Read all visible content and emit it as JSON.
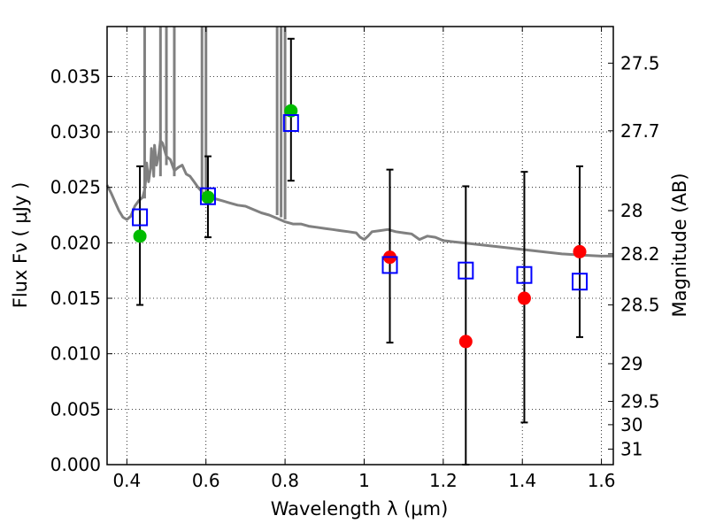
{
  "chart_data": {
    "type": "scatter",
    "title": "",
    "xlabel": "Wavelength  λ (μm)",
    "ylabel": "Flux  Fν  ( μJy )",
    "ylabel_right": "Magnitude (AB)",
    "xlim": [
      0.35,
      1.63
    ],
    "ylim": [
      0.0,
      0.0395
    ],
    "grid": true,
    "x_ticks": [
      0.4,
      0.6,
      0.8,
      1.0,
      1.2,
      1.4,
      1.6
    ],
    "x_tick_labels": [
      "0.4",
      "0.6",
      "0.8",
      "1",
      "1.2",
      "1.4",
      "1.6"
    ],
    "y_ticks": [
      0.0,
      0.005,
      0.01,
      0.015,
      0.02,
      0.025,
      0.03,
      0.035
    ],
    "y_tick_labels": [
      "0.000",
      "0.005",
      "0.010",
      "0.015",
      "0.020",
      "0.025",
      "0.030",
      "0.035"
    ],
    "right_ticks": [
      {
        "label": "27.5",
        "flux": 0.0362
      },
      {
        "label": "27.7",
        "flux": 0.0301
      },
      {
        "label": "28",
        "flux": 0.0229
      },
      {
        "label": "28.2",
        "flux": 0.019
      },
      {
        "label": "28.5",
        "flux": 0.0144
      },
      {
        "label": "29",
        "flux": 0.0091
      },
      {
        "label": "29.5",
        "flux": 0.0057
      },
      {
        "label": "30",
        "flux": 0.0036
      },
      {
        "label": "31",
        "flux": 0.0014
      }
    ],
    "series": [
      {
        "kind": "line",
        "color": "#808080",
        "x": [
          0.35,
          0.36,
          0.37,
          0.38,
          0.39,
          0.4,
          0.41,
          0.42,
          0.43,
          0.44,
          0.445,
          0.448,
          0.45,
          0.452,
          0.455,
          0.46,
          0.462,
          0.465,
          0.468,
          0.47,
          0.475,
          0.48,
          0.485,
          0.49,
          0.5,
          0.51,
          0.52,
          0.53,
          0.54,
          0.55,
          0.56,
          0.57,
          0.58,
          0.59,
          0.6,
          0.62,
          0.64,
          0.66,
          0.68,
          0.7,
          0.72,
          0.74,
          0.76,
          0.78,
          0.8,
          0.82,
          0.84,
          0.86,
          0.88,
          0.9,
          0.92,
          0.94,
          0.96,
          0.98,
          0.99,
          1.0,
          1.01,
          1.02,
          1.04,
          1.06,
          1.08,
          1.1,
          1.12,
          1.14,
          1.16,
          1.18,
          1.2,
          1.25,
          1.3,
          1.35,
          1.4,
          1.45,
          1.5,
          1.55,
          1.6,
          1.63
        ],
        "y": [
          0.0252,
          0.0245,
          0.0237,
          0.0229,
          0.0223,
          0.0221,
          0.0224,
          0.0233,
          0.0238,
          0.0241,
          0.0248,
          0.0258,
          0.0272,
          0.0265,
          0.0255,
          0.0268,
          0.0285,
          0.0275,
          0.026,
          0.0288,
          0.027,
          0.0278,
          0.0292,
          0.029,
          0.0278,
          0.0275,
          0.0265,
          0.0268,
          0.027,
          0.0262,
          0.026,
          0.0255,
          0.025,
          0.0246,
          0.0242,
          0.024,
          0.0238,
          0.0236,
          0.0234,
          0.0233,
          0.023,
          0.0227,
          0.0225,
          0.0222,
          0.0219,
          0.0217,
          0.0217,
          0.0215,
          0.0214,
          0.0213,
          0.0212,
          0.0211,
          0.021,
          0.0209,
          0.0205,
          0.0203,
          0.0206,
          0.021,
          0.0211,
          0.0212,
          0.021,
          0.0209,
          0.0208,
          0.0203,
          0.0206,
          0.0205,
          0.0202,
          0.02,
          0.0198,
          0.0196,
          0.0194,
          0.0192,
          0.019,
          0.0189,
          0.0188,
          0.0188
        ]
      },
      {
        "kind": "points",
        "marker": "filled-circle",
        "color": "#00bb00",
        "x": [
          0.433,
          0.605,
          0.815
        ],
        "y": [
          0.0206,
          0.0241,
          0.0319
        ]
      },
      {
        "kind": "points",
        "marker": "filled-circle",
        "color": "#ff0000",
        "x": [
          1.065,
          1.257,
          1.405,
          1.545
        ],
        "y": [
          0.0187,
          0.0111,
          0.015,
          0.0192
        ]
      },
      {
        "kind": "points",
        "marker": "open-square",
        "color": "#0000ff",
        "x": [
          0.433,
          0.605,
          0.815,
          1.065,
          1.257,
          1.405,
          1.545
        ],
        "y": [
          0.0223,
          0.0242,
          0.0308,
          0.018,
          0.0175,
          0.0171,
          0.0165
        ],
        "yerr_low": [
          0.0144,
          0.0205,
          0.0256,
          0.011,
          0.0,
          0.0038,
          0.0115
        ],
        "yerr_high": [
          0.0269,
          0.0278,
          0.0384,
          0.0266,
          0.0251,
          0.0264,
          0.0269
        ]
      }
    ]
  }
}
